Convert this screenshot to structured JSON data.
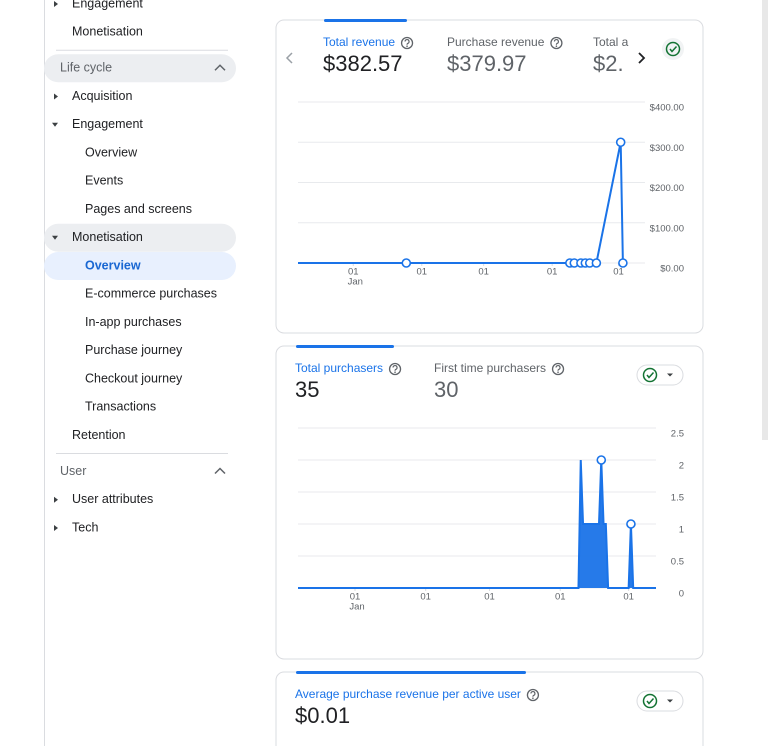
{
  "sidebar": {
    "items": [
      {
        "label": "Engagement",
        "kind": "item",
        "level": 0,
        "arrow": "right"
      },
      {
        "label": "Monetisation",
        "kind": "item",
        "level": 0,
        "arrow": null
      },
      {
        "label": "Life cycle",
        "kind": "header",
        "selected": true
      },
      {
        "label": "Acquisition",
        "kind": "item",
        "level": 0,
        "arrow": "right"
      },
      {
        "label": "Engagement",
        "kind": "item",
        "level": 0,
        "arrow": "down"
      },
      {
        "label": "Overview",
        "kind": "item",
        "level": 1
      },
      {
        "label": "Events",
        "kind": "item",
        "level": 1
      },
      {
        "label": "Pages and screens",
        "kind": "item",
        "level": 1
      },
      {
        "label": "Monetisation",
        "kind": "item",
        "level": 0,
        "arrow": "down",
        "selected": true
      },
      {
        "label": "Overview",
        "kind": "item",
        "level": 1,
        "active": true
      },
      {
        "label": "E-commerce purchases",
        "kind": "item",
        "level": 1
      },
      {
        "label": "In-app purchases",
        "kind": "item",
        "level": 1
      },
      {
        "label": "Purchase journey",
        "kind": "item",
        "level": 1
      },
      {
        "label": "Checkout journey",
        "kind": "item",
        "level": 1
      },
      {
        "label": "Transactions",
        "kind": "item",
        "level": 1
      },
      {
        "label": "Retention",
        "kind": "item",
        "level": 0,
        "arrow": null
      },
      {
        "label": "User",
        "kind": "header"
      },
      {
        "label": "User attributes",
        "kind": "item",
        "level": 0,
        "arrow": "right"
      },
      {
        "label": "Tech",
        "kind": "item",
        "level": 0,
        "arrow": "right"
      }
    ]
  },
  "cards": [
    {
      "metrics": [
        {
          "label": "Total revenue",
          "value": "$382.57",
          "active": true
        },
        {
          "label": "Purchase revenue",
          "value": "$379.97"
        },
        {
          "label": "Total a",
          "value": "$2."
        }
      ],
      "chart": {
        "type": "line",
        "color": "#1a73e8",
        "xlim": [
          6,
          163
        ],
        "ylim": [
          0,
          400
        ],
        "xticks": [
          {
            "value": 31,
            "label": "01"
          },
          {
            "value": 62,
            "label": "01"
          },
          {
            "value": 90,
            "label": "01"
          },
          {
            "value": 121,
            "label": "01"
          },
          {
            "value": 151,
            "label": "01"
          }
        ],
        "x_sublabel": "Jan",
        "yticks": [
          {
            "value": 400,
            "label": "$400.00"
          },
          {
            "value": 300,
            "label": "$300.00"
          },
          {
            "value": 200,
            "label": "$200.00"
          },
          {
            "value": 100,
            "label": "$100.00"
          },
          {
            "value": 0,
            "label": "$0.00"
          }
        ],
        "x": [
          6,
          55,
          129,
          131,
          134,
          136,
          138,
          141,
          152,
          153
        ],
        "values": [
          0,
          0,
          0,
          0,
          0,
          0,
          0,
          0,
          300,
          0
        ]
      }
    },
    {
      "metrics": [
        {
          "label": "Total purchasers",
          "value": "35",
          "active": true
        },
        {
          "label": "First time purchasers",
          "value": "30"
        }
      ],
      "chart": {
        "type": "area",
        "color": "#1a73e8",
        "xlim": [
          6,
          163
        ],
        "ylim": [
          0,
          2.5
        ],
        "xticks": [
          {
            "value": 31,
            "label": "01"
          },
          {
            "value": 62,
            "label": "01"
          },
          {
            "value": 90,
            "label": "01"
          },
          {
            "value": 121,
            "label": "01"
          },
          {
            "value": 151,
            "label": "01"
          }
        ],
        "x_sublabel": "Jan",
        "yticks": [
          2.5,
          2,
          1.5,
          1,
          0.5,
          0
        ],
        "x": [
          6,
          129,
          130,
          131,
          132,
          133,
          134,
          135,
          136,
          137,
          138,
          139,
          140,
          141,
          142,
          151,
          152,
          153,
          163
        ],
        "values": [
          0,
          0,
          2,
          1,
          1,
          1,
          1,
          1,
          1,
          1,
          1,
          2,
          1,
          1,
          0,
          0,
          1,
          0,
          0
        ]
      }
    },
    {
      "metrics": [
        {
          "label": "Average purchase revenue per active user",
          "value": "$0.01",
          "active": true
        }
      ]
    }
  ]
}
